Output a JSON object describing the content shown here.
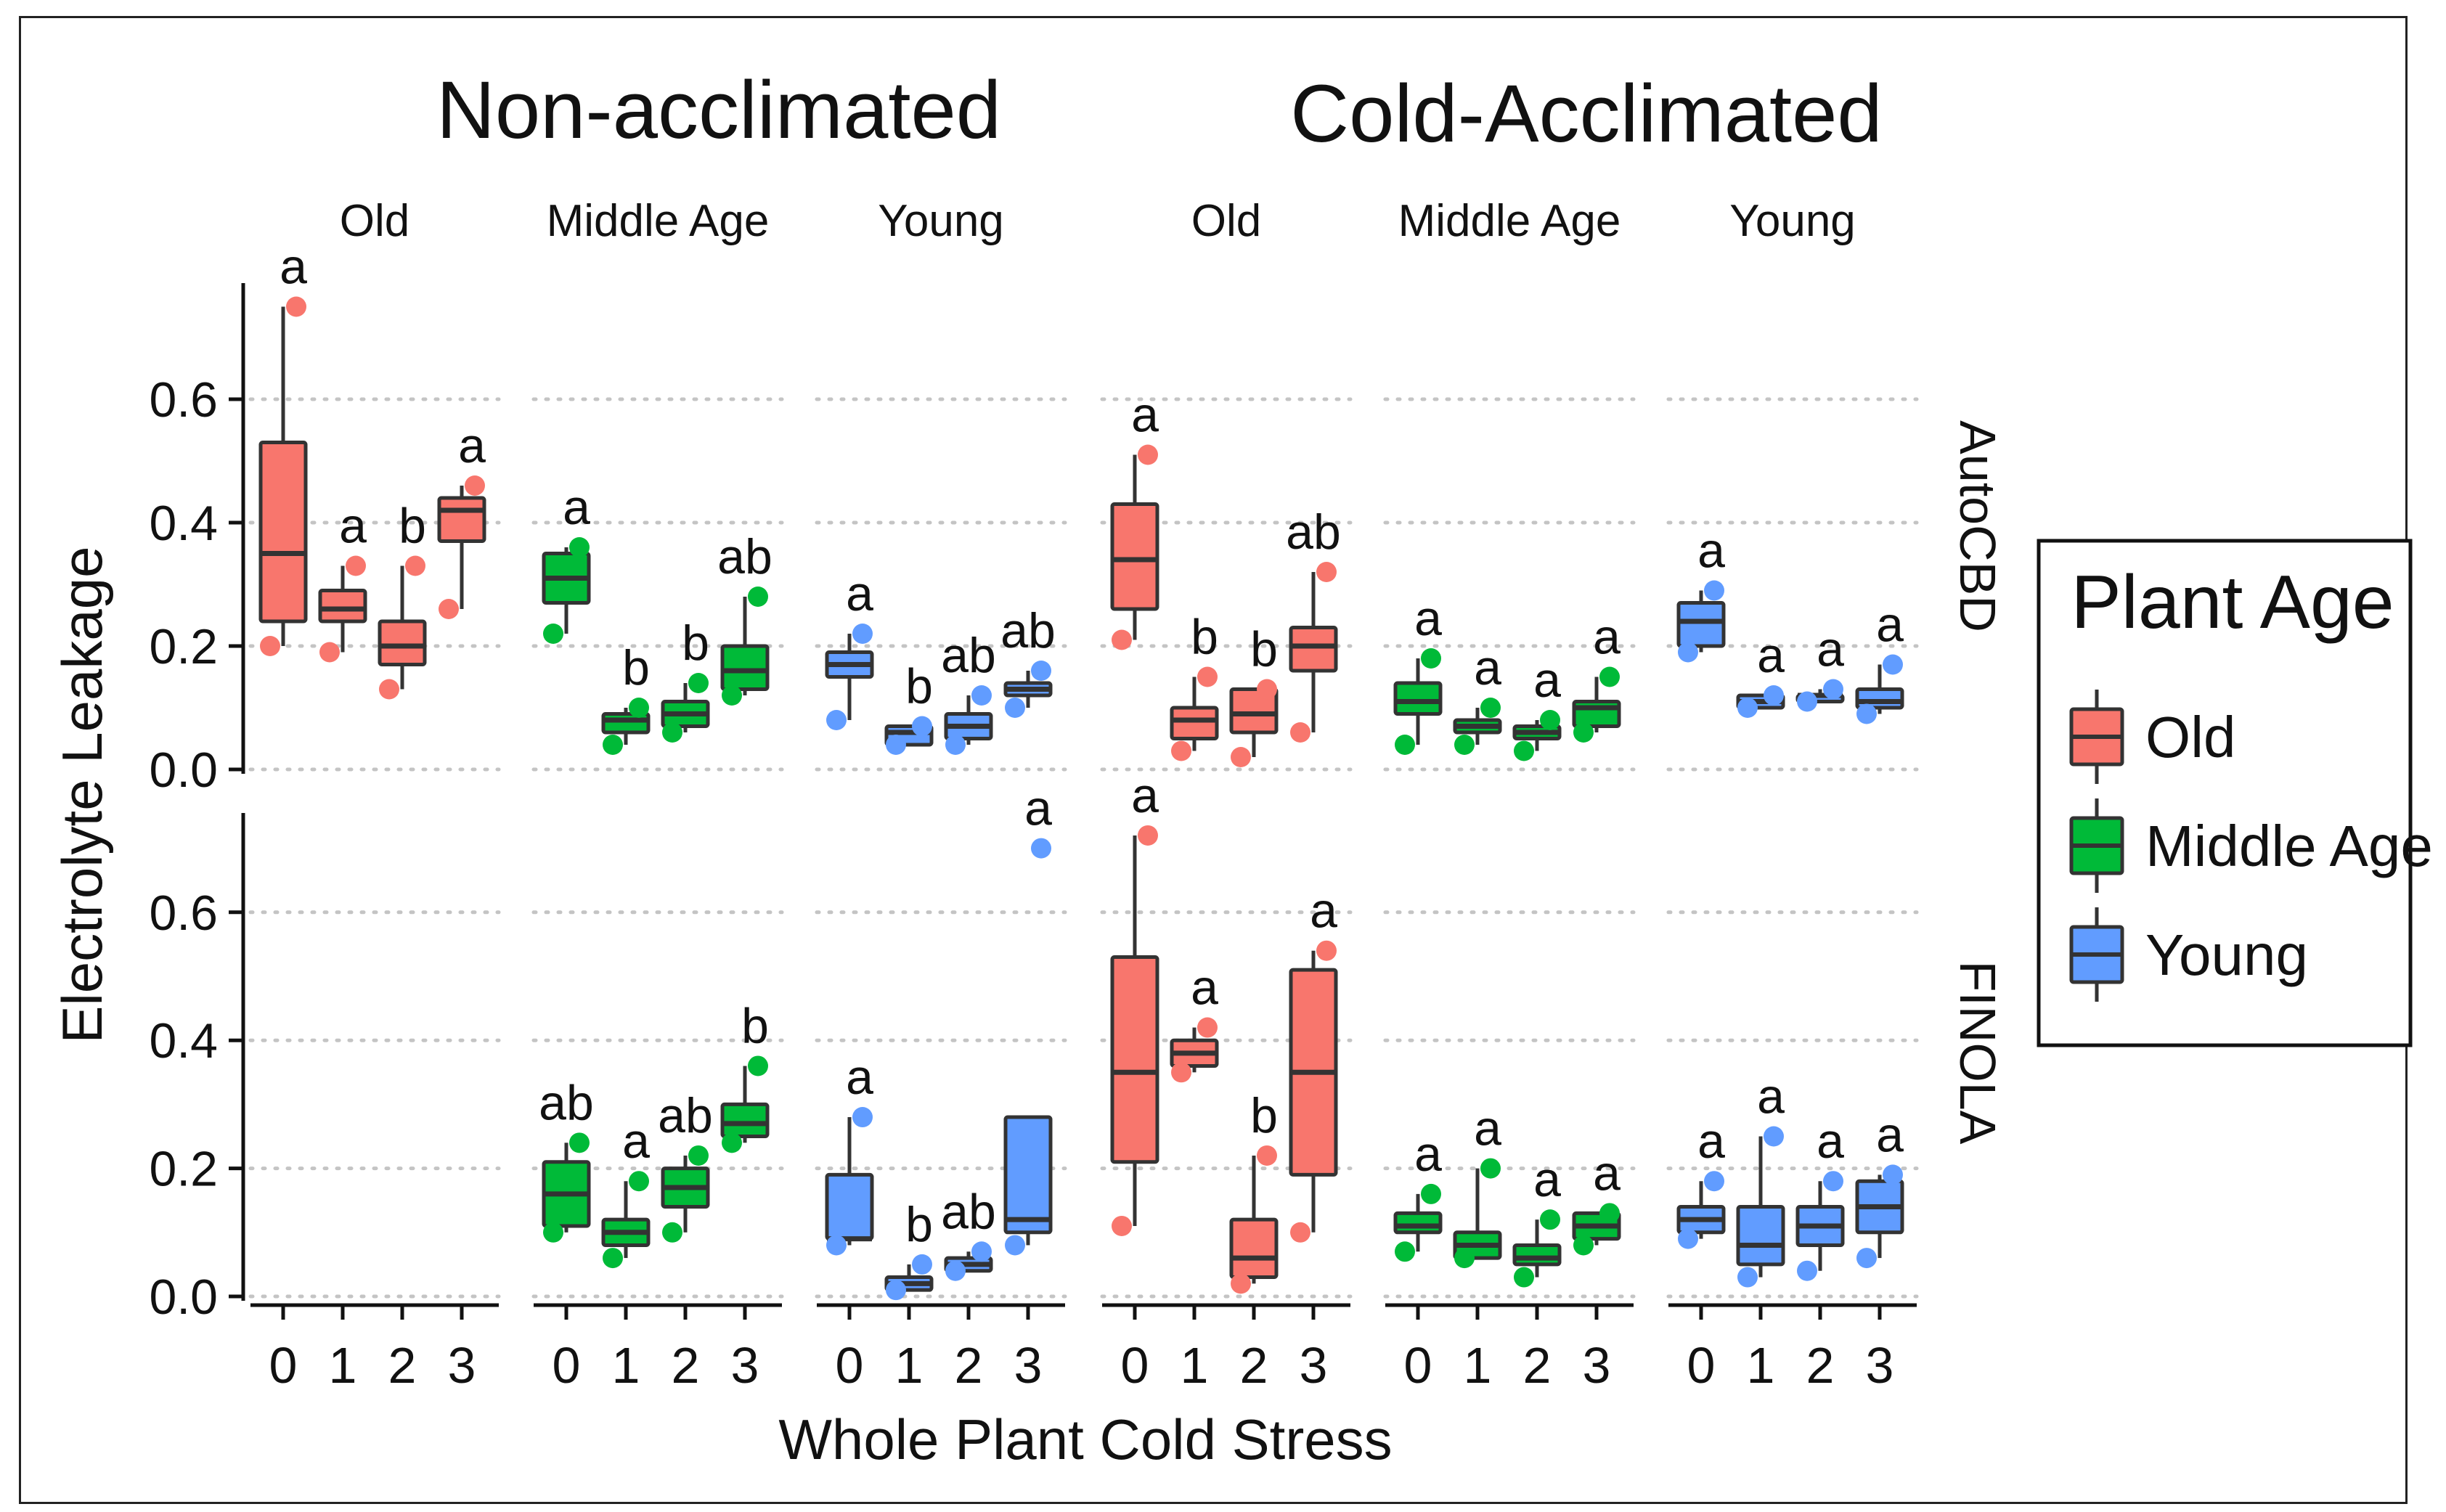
{
  "chart_data": {
    "type": "boxplot",
    "title_left": "Non-acclimated",
    "title_right": "Cold-Acclimated",
    "xlabel": "Whole Plant Cold Stress",
    "ylabel": "Electrolyte Leakage",
    "ylim": [
      0.0,
      0.75
    ],
    "yticks": [
      "0.0",
      "0.2",
      "0.4",
      "0.6"
    ],
    "xticks": [
      "0",
      "1",
      "2",
      "3"
    ],
    "row_labels": [
      "AutoCBD",
      "FINOLA"
    ],
    "col_labels": [
      "Old",
      "Middle Age",
      "Young",
      "Old",
      "Middle Age",
      "Young"
    ],
    "legend": {
      "title": "Plant Age",
      "items": [
        {
          "name": "Old",
          "color": "#f8766d"
        },
        {
          "name": "Middle Age",
          "color": "#00ba38"
        },
        {
          "name": "Young",
          "color": "#619cff"
        }
      ]
    },
    "panels": [
      {
        "row": 0,
        "col": 0,
        "age": "Old",
        "boxes": [
          {
            "x": "0",
            "min": 0.2,
            "q1": 0.24,
            "med": 0.35,
            "q3": 0.53,
            "max": 0.75,
            "points": [
              0.75,
              0.2
            ],
            "letter": "a"
          },
          {
            "x": "1",
            "min": 0.19,
            "q1": 0.24,
            "med": 0.26,
            "q3": 0.29,
            "max": 0.33,
            "points": [
              0.33,
              0.19
            ],
            "letter": "a"
          },
          {
            "x": "2",
            "min": 0.13,
            "q1": 0.17,
            "med": 0.2,
            "q3": 0.24,
            "max": 0.33,
            "points": [
              0.33,
              0.13
            ],
            "letter": "b"
          },
          {
            "x": "3",
            "min": 0.26,
            "q1": 0.37,
            "med": 0.42,
            "q3": 0.44,
            "max": 0.46,
            "points": [
              0.46,
              0.26
            ],
            "letter": "a"
          }
        ]
      },
      {
        "row": 0,
        "col": 1,
        "age": "Middle Age",
        "boxes": [
          {
            "x": "0",
            "min": 0.22,
            "q1": 0.27,
            "med": 0.31,
            "q3": 0.35,
            "max": 0.36,
            "points": [
              0.36,
              0.22
            ],
            "letter": "a"
          },
          {
            "x": "1",
            "min": 0.04,
            "q1": 0.06,
            "med": 0.08,
            "q3": 0.09,
            "max": 0.1,
            "points": [
              0.1,
              0.04
            ],
            "letter": "b"
          },
          {
            "x": "2",
            "min": 0.06,
            "q1": 0.07,
            "med": 0.09,
            "q3": 0.11,
            "max": 0.14,
            "points": [
              0.14,
              0.06
            ],
            "letter": "b"
          },
          {
            "x": "3",
            "min": 0.12,
            "q1": 0.13,
            "med": 0.16,
            "q3": 0.2,
            "max": 0.28,
            "points": [
              0.28,
              0.12
            ],
            "letter": "ab"
          }
        ]
      },
      {
        "row": 0,
        "col": 2,
        "age": "Young",
        "boxes": [
          {
            "x": "0",
            "min": 0.08,
            "q1": 0.15,
            "med": 0.17,
            "q3": 0.19,
            "max": 0.22,
            "points": [
              0.22,
              0.08
            ],
            "letter": "a"
          },
          {
            "x": "1",
            "min": 0.04,
            "q1": 0.04,
            "med": 0.06,
            "q3": 0.07,
            "max": 0.07,
            "points": [
              0.07,
              0.04
            ],
            "letter": "b"
          },
          {
            "x": "2",
            "min": 0.04,
            "q1": 0.05,
            "med": 0.07,
            "q3": 0.09,
            "max": 0.12,
            "points": [
              0.12,
              0.04
            ],
            "letter": "ab"
          },
          {
            "x": "3",
            "min": 0.1,
            "q1": 0.12,
            "med": 0.13,
            "q3": 0.14,
            "max": 0.16,
            "points": [
              0.16,
              0.1
            ],
            "letter": "ab"
          }
        ]
      },
      {
        "row": 0,
        "col": 3,
        "age": "Old",
        "boxes": [
          {
            "x": "0",
            "min": 0.21,
            "q1": 0.26,
            "med": 0.34,
            "q3": 0.43,
            "max": 0.51,
            "points": [
              0.51,
              0.21
            ],
            "letter": "a"
          },
          {
            "x": "1",
            "min": 0.03,
            "q1": 0.05,
            "med": 0.08,
            "q3": 0.1,
            "max": 0.15,
            "points": [
              0.15,
              0.03
            ],
            "letter": "b"
          },
          {
            "x": "2",
            "min": 0.02,
            "q1": 0.06,
            "med": 0.09,
            "q3": 0.13,
            "max": 0.13,
            "points": [
              0.13,
              0.02
            ],
            "letter": "b"
          },
          {
            "x": "3",
            "min": 0.06,
            "q1": 0.16,
            "med": 0.2,
            "q3": 0.23,
            "max": 0.32,
            "points": [
              0.32,
              0.06
            ],
            "letter": "ab"
          }
        ]
      },
      {
        "row": 0,
        "col": 4,
        "age": "Middle Age",
        "boxes": [
          {
            "x": "0",
            "min": 0.04,
            "q1": 0.09,
            "med": 0.11,
            "q3": 0.14,
            "max": 0.18,
            "points": [
              0.18,
              0.04
            ],
            "letter": "a"
          },
          {
            "x": "1",
            "min": 0.04,
            "q1": 0.06,
            "med": 0.07,
            "q3": 0.08,
            "max": 0.1,
            "points": [
              0.1,
              0.04
            ],
            "letter": "a"
          },
          {
            "x": "2",
            "min": 0.03,
            "q1": 0.05,
            "med": 0.06,
            "q3": 0.07,
            "max": 0.08,
            "points": [
              0.08,
              0.03
            ],
            "letter": "a"
          },
          {
            "x": "3",
            "min": 0.06,
            "q1": 0.07,
            "med": 0.1,
            "q3": 0.11,
            "max": 0.15,
            "points": [
              0.15,
              0.06
            ],
            "letter": "a"
          }
        ]
      },
      {
        "row": 0,
        "col": 5,
        "age": "Young",
        "boxes": [
          {
            "x": "0",
            "min": 0.19,
            "q1": 0.2,
            "med": 0.24,
            "q3": 0.27,
            "max": 0.29,
            "points": [
              0.29,
              0.19
            ],
            "letter": "a"
          },
          {
            "x": "1",
            "min": 0.1,
            "q1": 0.1,
            "med": 0.11,
            "q3": 0.12,
            "max": 0.12,
            "points": [
              0.12,
              0.1
            ],
            "letter": "a"
          },
          {
            "x": "2",
            "min": 0.11,
            "q1": 0.11,
            "med": 0.12,
            "q3": 0.12,
            "max": 0.13,
            "points": [
              0.13,
              0.11
            ],
            "letter": "a"
          },
          {
            "x": "3",
            "min": 0.09,
            "q1": 0.1,
            "med": 0.11,
            "q3": 0.13,
            "max": 0.17,
            "points": [
              0.17,
              0.09
            ],
            "letter": "a"
          }
        ]
      },
      {
        "row": 1,
        "col": 0,
        "age": "Old",
        "boxes": []
      },
      {
        "row": 1,
        "col": 1,
        "age": "Middle Age",
        "boxes": [
          {
            "x": "0",
            "min": 0.1,
            "q1": 0.11,
            "med": 0.16,
            "q3": 0.21,
            "max": 0.24,
            "points": [
              0.24,
              0.1
            ],
            "letter": "ab"
          },
          {
            "x": "1",
            "min": 0.06,
            "q1": 0.08,
            "med": 0.1,
            "q3": 0.12,
            "max": 0.18,
            "points": [
              0.18,
              0.06
            ],
            "letter": "a"
          },
          {
            "x": "2",
            "min": 0.1,
            "q1": 0.14,
            "med": 0.17,
            "q3": 0.2,
            "max": 0.22,
            "points": [
              0.22,
              0.1
            ],
            "letter": "ab"
          },
          {
            "x": "3",
            "min": 0.24,
            "q1": 0.25,
            "med": 0.27,
            "q3": 0.3,
            "max": 0.36,
            "points": [
              0.36,
              0.24
            ],
            "letter": "b"
          }
        ]
      },
      {
        "row": 1,
        "col": 2,
        "age": "Young",
        "boxes": [
          {
            "x": "0",
            "min": 0.08,
            "q1": 0.09,
            "med": 0.09,
            "q3": 0.19,
            "max": 0.28,
            "points": [
              0.28,
              0.08
            ],
            "letter": "a"
          },
          {
            "x": "1",
            "min": 0.01,
            "q1": 0.01,
            "med": 0.02,
            "q3": 0.03,
            "max": 0.05,
            "points": [
              0.05,
              0.01
            ],
            "letter": "b"
          },
          {
            "x": "2",
            "min": 0.04,
            "q1": 0.04,
            "med": 0.05,
            "q3": 0.06,
            "max": 0.07,
            "points": [
              0.07,
              0.04
            ],
            "letter": "ab"
          },
          {
            "x": "3",
            "min": 0.08,
            "q1": 0.1,
            "med": 0.12,
            "q3": 0.28,
            "max": 0.28,
            "points": [
              0.7,
              0.08
            ],
            "letter": "a"
          }
        ]
      },
      {
        "row": 1,
        "col": 3,
        "age": "Old",
        "boxes": [
          {
            "x": "0",
            "min": 0.11,
            "q1": 0.21,
            "med": 0.35,
            "q3": 0.53,
            "max": 0.72,
            "points": [
              0.72,
              0.11
            ],
            "letter": "a"
          },
          {
            "x": "1",
            "min": 0.35,
            "q1": 0.36,
            "med": 0.38,
            "q3": 0.4,
            "max": 0.42,
            "points": [
              0.42,
              0.35
            ],
            "letter": "a"
          },
          {
            "x": "2",
            "min": 0.02,
            "q1": 0.03,
            "med": 0.06,
            "q3": 0.12,
            "max": 0.22,
            "points": [
              0.22,
              0.02
            ],
            "letter": "b"
          },
          {
            "x": "3",
            "min": 0.1,
            "q1": 0.19,
            "med": 0.35,
            "q3": 0.51,
            "max": 0.54,
            "points": [
              0.54,
              0.1
            ],
            "letter": "a"
          }
        ]
      },
      {
        "row": 1,
        "col": 4,
        "age": "Middle Age",
        "boxes": [
          {
            "x": "0",
            "min": 0.07,
            "q1": 0.1,
            "med": 0.11,
            "q3": 0.13,
            "max": 0.16,
            "points": [
              0.16,
              0.07
            ],
            "letter": "a"
          },
          {
            "x": "1",
            "min": 0.06,
            "q1": 0.06,
            "med": 0.08,
            "q3": 0.1,
            "max": 0.2,
            "points": [
              0.2,
              0.06
            ],
            "letter": "a"
          },
          {
            "x": "2",
            "min": 0.03,
            "q1": 0.05,
            "med": 0.06,
            "q3": 0.08,
            "max": 0.12,
            "points": [
              0.12,
              0.03
            ],
            "letter": "a"
          },
          {
            "x": "3",
            "min": 0.08,
            "q1": 0.09,
            "med": 0.11,
            "q3": 0.13,
            "max": 0.13,
            "points": [
              0.13,
              0.08
            ],
            "letter": "a"
          }
        ]
      },
      {
        "row": 1,
        "col": 5,
        "age": "Young",
        "boxes": [
          {
            "x": "0",
            "min": 0.09,
            "q1": 0.1,
            "med": 0.12,
            "q3": 0.14,
            "max": 0.18,
            "points": [
              0.18,
              0.09
            ],
            "letter": "a"
          },
          {
            "x": "1",
            "min": 0.03,
            "q1": 0.05,
            "med": 0.08,
            "q3": 0.14,
            "max": 0.25,
            "points": [
              0.25,
              0.03
            ],
            "letter": "a"
          },
          {
            "x": "2",
            "min": 0.04,
            "q1": 0.08,
            "med": 0.11,
            "q3": 0.14,
            "max": 0.18,
            "points": [
              0.18,
              0.04
            ],
            "letter": "a"
          },
          {
            "x": "3",
            "min": 0.06,
            "q1": 0.1,
            "med": 0.14,
            "q3": 0.18,
            "max": 0.19,
            "points": [
              0.19,
              0.06
            ],
            "letter": "a"
          }
        ]
      }
    ]
  }
}
